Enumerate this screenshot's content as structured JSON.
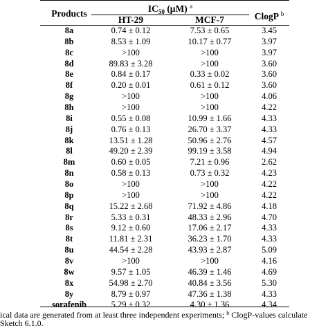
{
  "header": {
    "products": "Products",
    "ic50_prefix": "IC",
    "ic50_sub": "50",
    "ic50_unit": " (μM) ",
    "ic50_sup": "a",
    "ht29": "HT-29",
    "mcf7": "MCF-7",
    "clogp": "ClogP ",
    "clogp_sup": "b"
  },
  "rows": [
    {
      "product": "8a",
      "ht29": "0.74 ± 0.12",
      "mcf7": "7.53 ± 0.65",
      "clogp": "3.45"
    },
    {
      "product": "8b",
      "ht29": "8.53 ± 1.09",
      "mcf7": "10.17 ± 0.77",
      "clogp": "3.97"
    },
    {
      "product": "8c",
      "ht29": ">100",
      "mcf7": ">100",
      "clogp": "3.97"
    },
    {
      "product": "8d",
      "ht29": "89.83 ± 3.28",
      "mcf7": ">100",
      "clogp": "3.60"
    },
    {
      "product": "8e",
      "ht29": "0.84 ± 0.17",
      "mcf7": "0.33 ± 0.02",
      "clogp": "3.60"
    },
    {
      "product": "8f",
      "ht29": "0.20 ± 0.01",
      "mcf7": "0.61 ± 0.12",
      "clogp": "3.60"
    },
    {
      "product": "8g",
      "ht29": ">100",
      "mcf7": ">100",
      "clogp": "4.06"
    },
    {
      "product": "8h",
      "ht29": ">100",
      "mcf7": ">100",
      "clogp": "4.22"
    },
    {
      "product": "8i",
      "ht29": "0.55 ± 0.08",
      "mcf7": "10.99 ± 1.66",
      "clogp": "4.33"
    },
    {
      "product": "8j",
      "ht29": "0.76 ± 0.13",
      "mcf7": "26.70 ± 3.37",
      "clogp": "4.33"
    },
    {
      "product": "8k",
      "ht29": "13.51 ± 1.28",
      "mcf7": "50.96 ± 2.76",
      "clogp": "4.57"
    },
    {
      "product": "8l",
      "ht29": "49.20 ± 2.39",
      "mcf7": "99.19 ± 3.58",
      "clogp": "4.94"
    },
    {
      "product": "8m",
      "ht29": "0.60 ± 0.05",
      "mcf7": "7.21 ± 0.96",
      "clogp": "2.62"
    },
    {
      "product": "8n",
      "ht29": "0.58 ± 0.13",
      "mcf7": "0.73 ± 0.32",
      "clogp": "4.23"
    },
    {
      "product": "8o",
      "ht29": ">100",
      "mcf7": ">100",
      "clogp": "4.22"
    },
    {
      "product": "8p",
      "ht29": ">100",
      "mcf7": ">100",
      "clogp": "4.22"
    },
    {
      "product": "8q",
      "ht29": "15.22 ± 2.68",
      "mcf7": "71.92 ± 4.86",
      "clogp": "4.18"
    },
    {
      "product": "8r",
      "ht29": "5.33 ± 0.31",
      "mcf7": "48.33 ± 2.96",
      "clogp": "4.70"
    },
    {
      "product": "8s",
      "ht29": "9.12 ± 0.60",
      "mcf7": "17.06 ± 2.17",
      "clogp": "4.33"
    },
    {
      "product": "8t",
      "ht29": "11.81 ± 2.31",
      "mcf7": "36.23 ± 1.70",
      "clogp": "4.33"
    },
    {
      "product": "8u",
      "ht29": "44.54 ± 2.28",
      "mcf7": "43.93 ± 2.87",
      "clogp": "5.09"
    },
    {
      "product": "8v",
      "ht29": ">100",
      "mcf7": ">100",
      "clogp": "4.16"
    },
    {
      "product": "8w",
      "ht29": "9.57 ± 1.05",
      "mcf7": "46.39 ± 1.46",
      "clogp": "4.69"
    },
    {
      "product": "8x",
      "ht29": "54.98 ± 2.70",
      "mcf7": "40.84 ± 3.56",
      "clogp": "5.30"
    },
    {
      "product": "8y",
      "ht29": "8.79 ± 0.97",
      "mcf7": "47.36 ± 1.38",
      "clogp": "4.33"
    },
    {
      "product": "sorafenib",
      "ht29": "5.29 ± 0.32",
      "mcf7": "4.30 ± 1.36",
      "clogp": "4.34"
    }
  ],
  "footnote": {
    "line1_a": "ical data are generated from at least three independent experiments; ",
    "sup_b": "b",
    "line1_b": " ClogP-values calculate",
    "line2": "Sketch 6.1.0."
  }
}
